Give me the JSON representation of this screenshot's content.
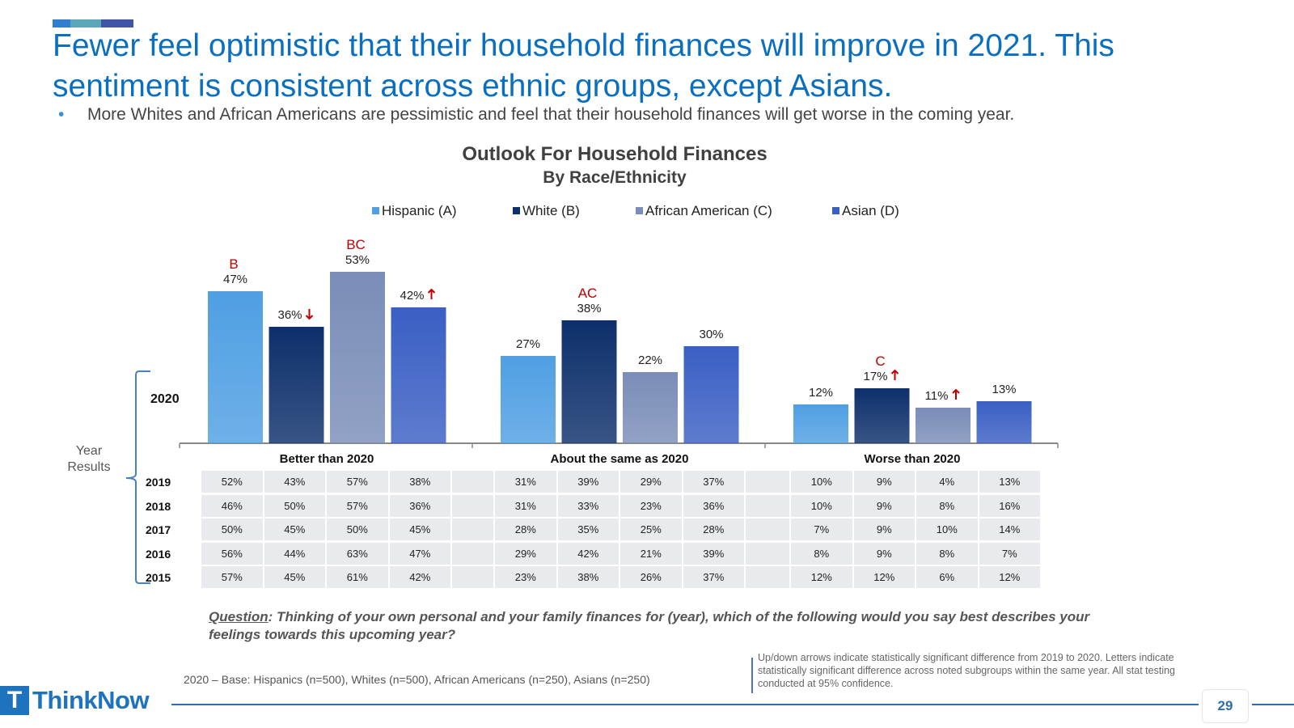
{
  "slide": {
    "accent_colors": [
      "#2e7fd0",
      "#5aa8b8",
      "#3f55a8"
    ],
    "title": "Fewer feel optimistic that their household finances will improve in 2021. This sentiment is consistent across ethnic groups, except Asians.",
    "bullet_marker": "•",
    "bullet": "More Whites and African Americans are pessimistic and feel that their household finances will get worse in the coming year.",
    "question_label": "Question",
    "question_text": ": Thinking of your own personal and your family finances for (year), which of the following would you say best describes your feelings towards this upcoming year?",
    "base_note": "2020 – Base: Hispanics (n=500), Whites (n=500), African Americans (n=250), Asians (n=250)",
    "sig_note": "Up/down arrows indicate statistically significant difference from 2019 to 2020. Letters indicate statistically significant difference across noted subgroups within the same year.  All stat testing conducted at 95% confidence.",
    "page_number": "29",
    "logo_text": "ThinkNow",
    "logo_mark": "T",
    "year_results_label": "Year Results",
    "current_year_label": "2020"
  },
  "chart_data": {
    "type": "bar",
    "title": "Outlook For Household Finances",
    "subtitle": "By Race/Ethnicity",
    "categories": [
      "Better than 2020",
      "About the same as 2020",
      "Worse than 2020"
    ],
    "series": [
      {
        "name": "Hispanic (A)",
        "color": "#4f9fe3",
        "values": [
          47,
          27,
          12
        ],
        "sig_letters": [
          "B",
          "",
          ""
        ],
        "arrows": [
          "",
          "",
          ""
        ]
      },
      {
        "name": "White (B)",
        "color": "#0d2f6b",
        "values": [
          36,
          38,
          17
        ],
        "sig_letters": [
          "",
          "AC",
          "C"
        ],
        "arrows": [
          "down",
          "",
          "up"
        ]
      },
      {
        "name": "African American (C)",
        "color": "#7a8db8",
        "values": [
          53,
          22,
          11
        ],
        "sig_letters": [
          "BC",
          "",
          ""
        ],
        "arrows": [
          "",
          "",
          "up"
        ]
      },
      {
        "name": "Asian (D)",
        "color": "#3a5fc4",
        "values": [
          42,
          30,
          13
        ],
        "sig_letters": [
          "",
          "",
          ""
        ],
        "arrows": [
          "up",
          "",
          ""
        ]
      }
    ],
    "value_suffix": "%",
    "ylim": [
      0,
      60
    ],
    "arrow_color": "#c00000",
    "letter_color": "#c00000",
    "history": [
      {
        "year": "2019",
        "values": [
          [
            "52%",
            "43%",
            "57%",
            "38%"
          ],
          [
            "31%",
            "39%",
            "29%",
            "37%"
          ],
          [
            "10%",
            "9%",
            "4%",
            "13%"
          ]
        ]
      },
      {
        "year": "2018",
        "values": [
          [
            "46%",
            "50%",
            "57%",
            "36%"
          ],
          [
            "31%",
            "33%",
            "23%",
            "36%"
          ],
          [
            "10%",
            "9%",
            "8%",
            "16%"
          ]
        ]
      },
      {
        "year": "2017",
        "values": [
          [
            "50%",
            "45%",
            "50%",
            "45%"
          ],
          [
            "28%",
            "35%",
            "25%",
            "28%"
          ],
          [
            "7%",
            "9%",
            "10%",
            "14%"
          ]
        ]
      },
      {
        "year": "2016",
        "values": [
          [
            "56%",
            "44%",
            "63%",
            "47%"
          ],
          [
            "29%",
            "42%",
            "21%",
            "39%"
          ],
          [
            "8%",
            "9%",
            "8%",
            "7%"
          ]
        ]
      },
      {
        "year": "2015",
        "values": [
          [
            "57%",
            "45%",
            "61%",
            "42%"
          ],
          [
            "23%",
            "38%",
            "26%",
            "37%"
          ],
          [
            "12%",
            "12%",
            "6%",
            "12%"
          ]
        ]
      }
    ]
  }
}
